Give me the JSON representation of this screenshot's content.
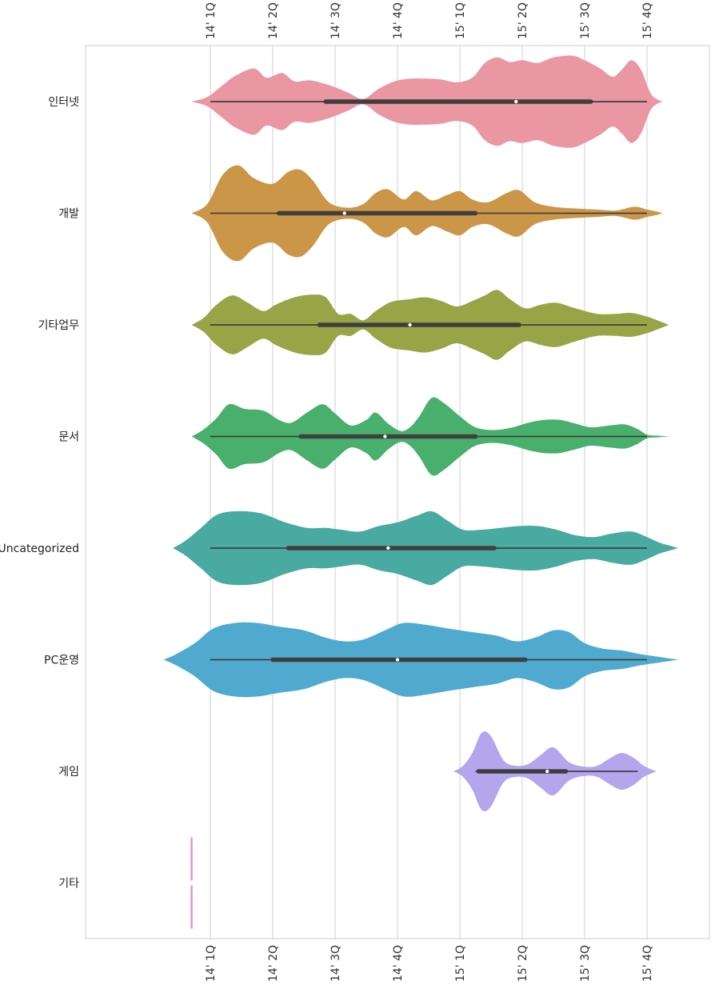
{
  "chart_data": {
    "type": "violin",
    "orientation": "horizontal",
    "title": "",
    "xlabel": "",
    "ylabel": "",
    "x_ticks": [
      {
        "label": "14' 1Q",
        "value": 1
      },
      {
        "label": "14' 2Q",
        "value": 2
      },
      {
        "label": "14' 3Q",
        "value": 3
      },
      {
        "label": "14' 4Q",
        "value": 4
      },
      {
        "label": "15' 1Q",
        "value": 5
      },
      {
        "label": "15' 2Q",
        "value": 6
      },
      {
        "label": "15' 3Q",
        "value": 7
      },
      {
        "label": "15' 4Q",
        "value": 8
      }
    ],
    "xlim": [
      -1,
      9.0
    ],
    "tick_labels_top": true,
    "tick_labels_bottom": true,
    "grid": "vertical",
    "violins": [
      {
        "category": "인터넷",
        "color": "#ea96a3",
        "profile": [
          [
            0.7,
            0
          ],
          [
            0.95,
            0.05
          ],
          [
            1.2,
            0.18
          ],
          [
            1.4,
            0.28
          ],
          [
            1.7,
            0.36
          ],
          [
            1.9,
            0.26
          ],
          [
            2.15,
            0.31
          ],
          [
            2.35,
            0.22
          ],
          [
            2.6,
            0.23
          ],
          [
            2.9,
            0.18
          ],
          [
            3.2,
            0.1
          ],
          [
            3.45,
            0.03
          ],
          [
            3.7,
            0.14
          ],
          [
            3.95,
            0.22
          ],
          [
            4.2,
            0.25
          ],
          [
            4.45,
            0.25
          ],
          [
            4.7,
            0.24
          ],
          [
            4.95,
            0.21
          ],
          [
            5.2,
            0.26
          ],
          [
            5.4,
            0.42
          ],
          [
            5.6,
            0.48
          ],
          [
            5.8,
            0.43
          ],
          [
            6.0,
            0.45
          ],
          [
            6.25,
            0.42
          ],
          [
            6.5,
            0.48
          ],
          [
            6.8,
            0.5
          ],
          [
            7.0,
            0.45
          ],
          [
            7.25,
            0.36
          ],
          [
            7.45,
            0.27
          ],
          [
            7.6,
            0.35
          ],
          [
            7.75,
            0.45
          ],
          [
            7.9,
            0.35
          ],
          [
            8.05,
            0.1
          ],
          [
            8.15,
            0.03
          ],
          [
            8.25,
            0
          ]
        ],
        "box": {
          "whisker_low": 1.0,
          "q1": 2.85,
          "median": 5.9,
          "q3": 7.1,
          "whisker_high": 8.0
        }
      },
      {
        "category": "개발",
        "color": "#cc9649",
        "profile": [
          [
            0.7,
            0
          ],
          [
            0.95,
            0.1
          ],
          [
            1.2,
            0.42
          ],
          [
            1.45,
            0.52
          ],
          [
            1.7,
            0.38
          ],
          [
            2.0,
            0.32
          ],
          [
            2.25,
            0.45
          ],
          [
            2.45,
            0.47
          ],
          [
            2.65,
            0.35
          ],
          [
            2.9,
            0.12
          ],
          [
            3.2,
            0.06
          ],
          [
            3.45,
            0.1
          ],
          [
            3.65,
            0.22
          ],
          [
            3.85,
            0.26
          ],
          [
            4.1,
            0.15
          ],
          [
            4.3,
            0.24
          ],
          [
            4.55,
            0.14
          ],
          [
            4.8,
            0.2
          ],
          [
            5.0,
            0.24
          ],
          [
            5.2,
            0.15
          ],
          [
            5.45,
            0.12
          ],
          [
            5.75,
            0.22
          ],
          [
            5.95,
            0.25
          ],
          [
            6.2,
            0.12
          ],
          [
            6.5,
            0.07
          ],
          [
            6.9,
            0.05
          ],
          [
            7.2,
            0.04
          ],
          [
            7.5,
            0.03
          ],
          [
            7.8,
            0.07
          ],
          [
            8.0,
            0.04
          ],
          [
            8.15,
            0.02
          ],
          [
            8.25,
            0
          ]
        ],
        "box": {
          "whisker_low": 1.0,
          "q1": 2.1,
          "median": 3.15,
          "q3": 5.25,
          "whisker_high": 8.0
        }
      },
      {
        "category": "기타업무",
        "color": "#98a546",
        "profile": [
          [
            0.7,
            0
          ],
          [
            0.9,
            0.08
          ],
          [
            1.1,
            0.22
          ],
          [
            1.35,
            0.32
          ],
          [
            1.6,
            0.24
          ],
          [
            1.85,
            0.15
          ],
          [
            2.05,
            0.22
          ],
          [
            2.35,
            0.3
          ],
          [
            2.65,
            0.33
          ],
          [
            2.85,
            0.3
          ],
          [
            3.05,
            0.12
          ],
          [
            3.25,
            0.12
          ],
          [
            3.45,
            0.05
          ],
          [
            3.65,
            0.15
          ],
          [
            3.9,
            0.25
          ],
          [
            4.2,
            0.28
          ],
          [
            4.45,
            0.3
          ],
          [
            4.7,
            0.26
          ],
          [
            4.95,
            0.2
          ],
          [
            5.2,
            0.26
          ],
          [
            5.4,
            0.32
          ],
          [
            5.6,
            0.38
          ],
          [
            5.8,
            0.28
          ],
          [
            6.05,
            0.18
          ],
          [
            6.3,
            0.22
          ],
          [
            6.55,
            0.24
          ],
          [
            6.85,
            0.18
          ],
          [
            7.2,
            0.12
          ],
          [
            7.5,
            0.12
          ],
          [
            7.75,
            0.13
          ],
          [
            8.0,
            0.09
          ],
          [
            8.2,
            0.04
          ],
          [
            8.35,
            0
          ]
        ],
        "box": {
          "whisker_low": 1.0,
          "q1": 2.75,
          "median": 4.2,
          "q3": 5.95,
          "whisker_high": 8.0
        }
      },
      {
        "category": "문서",
        "color": "#48b06c",
        "profile": [
          [
            0.7,
            0
          ],
          [
            0.9,
            0.08
          ],
          [
            1.1,
            0.2
          ],
          [
            1.3,
            0.35
          ],
          [
            1.55,
            0.3
          ],
          [
            1.85,
            0.28
          ],
          [
            2.1,
            0.18
          ],
          [
            2.3,
            0.15
          ],
          [
            2.55,
            0.26
          ],
          [
            2.8,
            0.35
          ],
          [
            3.0,
            0.25
          ],
          [
            3.25,
            0.12
          ],
          [
            3.5,
            0.18
          ],
          [
            3.65,
            0.26
          ],
          [
            3.85,
            0.14
          ],
          [
            4.05,
            0.06
          ],
          [
            4.2,
            0.1
          ],
          [
            4.35,
            0.22
          ],
          [
            4.55,
            0.42
          ],
          [
            4.75,
            0.36
          ],
          [
            5.0,
            0.22
          ],
          [
            5.25,
            0.1
          ],
          [
            5.55,
            0.07
          ],
          [
            5.85,
            0.1
          ],
          [
            6.1,
            0.15
          ],
          [
            6.35,
            0.18
          ],
          [
            6.6,
            0.18
          ],
          [
            6.85,
            0.14
          ],
          [
            7.1,
            0.1
          ],
          [
            7.4,
            0.12
          ],
          [
            7.65,
            0.13
          ],
          [
            7.85,
            0.08
          ],
          [
            8.0,
            0.02
          ],
          [
            8.15,
            0.01
          ],
          [
            8.35,
            0
          ]
        ],
        "box": {
          "whisker_low": 1.0,
          "q1": 2.45,
          "median": 3.8,
          "q3": 5.25,
          "whisker_high": 8.0
        }
      },
      {
        "category": "Uncategorized",
        "color": "#49aaa1",
        "profile": [
          [
            0.4,
            0
          ],
          [
            0.6,
            0.08
          ],
          [
            0.85,
            0.22
          ],
          [
            1.1,
            0.36
          ],
          [
            1.4,
            0.4
          ],
          [
            1.8,
            0.38
          ],
          [
            2.2,
            0.28
          ],
          [
            2.55,
            0.22
          ],
          [
            2.85,
            0.22
          ],
          [
            3.1,
            0.2
          ],
          [
            3.4,
            0.18
          ],
          [
            3.7,
            0.24
          ],
          [
            4.0,
            0.28
          ],
          [
            4.3,
            0.35
          ],
          [
            4.55,
            0.4
          ],
          [
            4.8,
            0.3
          ],
          [
            5.05,
            0.2
          ],
          [
            5.35,
            0.2
          ],
          [
            5.65,
            0.22
          ],
          [
            5.95,
            0.24
          ],
          [
            6.25,
            0.24
          ],
          [
            6.55,
            0.2
          ],
          [
            6.85,
            0.14
          ],
          [
            7.15,
            0.12
          ],
          [
            7.45,
            0.16
          ],
          [
            7.75,
            0.18
          ],
          [
            8.0,
            0.12
          ],
          [
            8.2,
            0.06
          ],
          [
            8.4,
            0.02
          ],
          [
            8.5,
            0
          ]
        ],
        "box": {
          "whisker_low": 1.0,
          "q1": 2.25,
          "median": 3.85,
          "q3": 5.55,
          "whisker_high": 8.0
        }
      },
      {
        "category": "PC운영",
        "color": "#50aad0",
        "profile": [
          [
            0.25,
            0
          ],
          [
            0.45,
            0.06
          ],
          [
            0.75,
            0.18
          ],
          [
            1.05,
            0.34
          ],
          [
            1.4,
            0.4
          ],
          [
            1.75,
            0.4
          ],
          [
            2.1,
            0.36
          ],
          [
            2.5,
            0.32
          ],
          [
            2.85,
            0.24
          ],
          [
            3.15,
            0.2
          ],
          [
            3.45,
            0.22
          ],
          [
            3.8,
            0.32
          ],
          [
            4.1,
            0.4
          ],
          [
            4.45,
            0.38
          ],
          [
            4.8,
            0.34
          ],
          [
            5.2,
            0.3
          ],
          [
            5.6,
            0.26
          ],
          [
            5.9,
            0.2
          ],
          [
            6.2,
            0.24
          ],
          [
            6.5,
            0.32
          ],
          [
            6.75,
            0.3
          ],
          [
            7.0,
            0.18
          ],
          [
            7.3,
            0.12
          ],
          [
            7.6,
            0.1
          ],
          [
            7.9,
            0.06
          ],
          [
            8.2,
            0.03
          ],
          [
            8.5,
            0
          ]
        ],
        "box": {
          "whisker_low": 1.0,
          "q1": 2.0,
          "median": 4.0,
          "q3": 6.05,
          "whisker_high": 8.0
        }
      },
      {
        "category": "게임",
        "color": "#b3a6ec",
        "profile": [
          [
            4.9,
            0
          ],
          [
            5.05,
            0.06
          ],
          [
            5.2,
            0.2
          ],
          [
            5.35,
            0.42
          ],
          [
            5.5,
            0.38
          ],
          [
            5.7,
            0.12
          ],
          [
            5.9,
            0.06
          ],
          [
            6.1,
            0.08
          ],
          [
            6.3,
            0.18
          ],
          [
            6.5,
            0.26
          ],
          [
            6.75,
            0.1
          ],
          [
            7.0,
            0.05
          ],
          [
            7.2,
            0.06
          ],
          [
            7.4,
            0.14
          ],
          [
            7.6,
            0.2
          ],
          [
            7.8,
            0.14
          ],
          [
            7.95,
            0.06
          ],
          [
            8.15,
            0
          ]
        ],
        "box": {
          "whisker_low": 5.25,
          "q1": 5.3,
          "median": 6.4,
          "q3": 6.7,
          "whisker_high": 7.85
        }
      },
      {
        "category": "기타",
        "color": "#e586d0",
        "profile": [],
        "point_value": 0.7,
        "box": null
      }
    ]
  }
}
